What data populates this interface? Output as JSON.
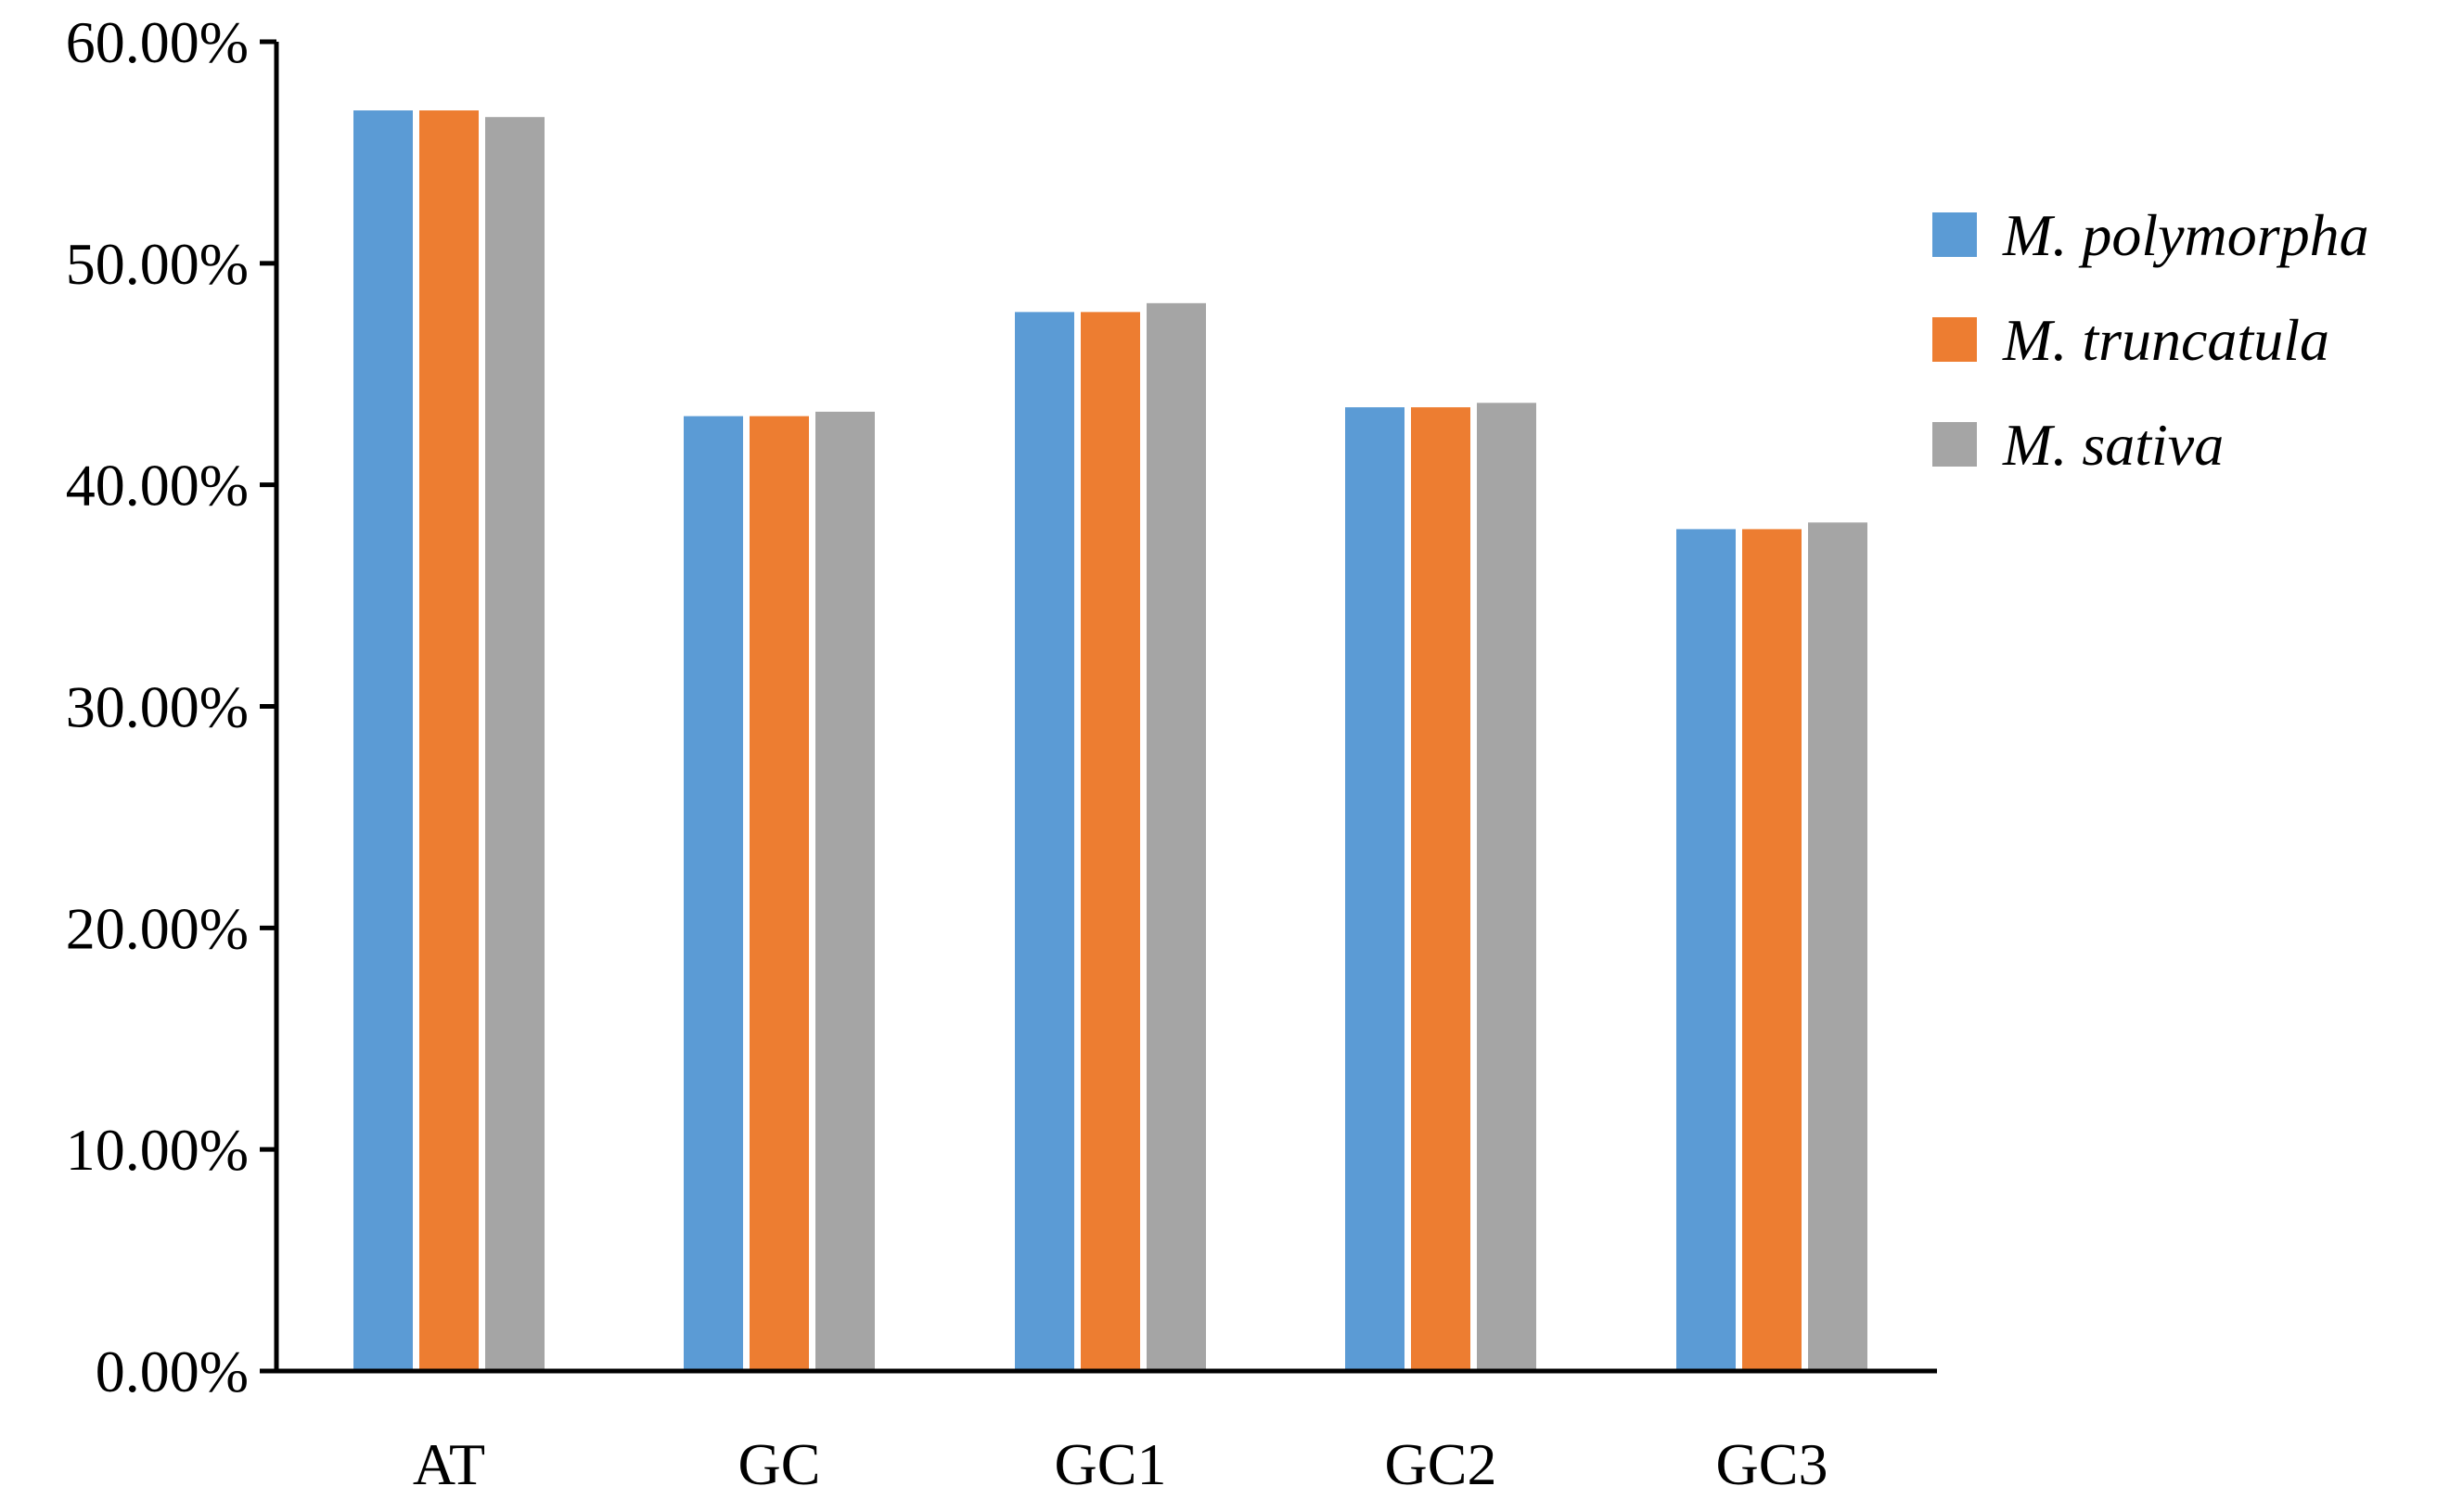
{
  "chart_data": {
    "type": "bar",
    "title": "",
    "xlabel": "",
    "ylabel": "",
    "categories": [
      "AT",
      "GC",
      "GC1",
      "GC2",
      "GC3"
    ],
    "series": [
      {
        "name": "M. polymorpha",
        "color": "#5B9BD5",
        "values": [
          56.9,
          43.1,
          47.8,
          43.5,
          38.0
        ]
      },
      {
        "name": "M. truncatula",
        "color": "#ED7D31",
        "values": [
          56.9,
          43.1,
          47.8,
          43.5,
          38.0
        ]
      },
      {
        "name": "M. sativa",
        "color": "#A5A5A5",
        "values": [
          56.6,
          43.3,
          48.2,
          43.7,
          38.3
        ]
      }
    ],
    "ylim": [
      0,
      60
    ],
    "yticks": [
      0,
      10,
      20,
      30,
      40,
      50,
      60
    ],
    "ytick_labels": [
      "0.00%",
      "10.00%",
      "20.00%",
      "30.00%",
      "40.00%",
      "50.00%",
      "60.00%"
    ],
    "legend_position": "right",
    "grid": false
  }
}
